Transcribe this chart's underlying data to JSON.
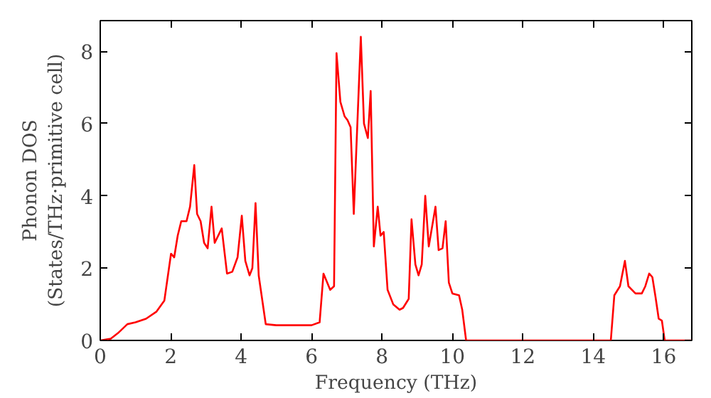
{
  "chart_data": {
    "type": "line",
    "xlabel": "Frequency (THz)",
    "ylabel": "Phonon DOS\n(States/THz·primitive cell)",
    "x": [
      0,
      0.3,
      0.5,
      0.77,
      1.0,
      1.3,
      1.6,
      1.82,
      2.01,
      2.1,
      2.2,
      2.3,
      2.45,
      2.55,
      2.67,
      2.75,
      2.85,
      2.95,
      3.05,
      3.16,
      3.25,
      3.45,
      3.6,
      3.75,
      3.9,
      4.02,
      4.12,
      4.24,
      4.32,
      4.41,
      4.5,
      4.7,
      5.0,
      5.5,
      6.0,
      6.23,
      6.34,
      6.53,
      6.64,
      6.71,
      6.82,
      6.94,
      7.02,
      7.11,
      7.2,
      7.4,
      7.49,
      7.6,
      7.68,
      7.77,
      7.88,
      7.96,
      8.05,
      8.16,
      8.32,
      8.5,
      8.6,
      8.76,
      8.84,
      8.95,
      9.04,
      9.13,
      9.23,
      9.33,
      9.52,
      9.61,
      9.72,
      9.81,
      9.9,
      10.0,
      10.19,
      10.28,
      10.39,
      12.0,
      14.5,
      14.6,
      14.76,
      14.9,
      15.0,
      15.2,
      15.38,
      15.48,
      15.59,
      15.68,
      15.77,
      15.86,
      15.95,
      16.03,
      16.8
    ],
    "series": [
      {
        "color": "#ff0000",
        "values": [
          0,
          0.05,
          0.2,
          0.45,
          0.5,
          0.6,
          0.8,
          1.1,
          2.4,
          2.3,
          2.9,
          3.3,
          3.3,
          3.7,
          4.85,
          3.5,
          3.3,
          2.7,
          2.55,
          3.7,
          2.7,
          3.1,
          1.85,
          1.9,
          2.3,
          3.45,
          2.2,
          1.8,
          2.0,
          3.8,
          1.8,
          0.45,
          0.42,
          0.42,
          0.42,
          0.5,
          1.85,
          1.4,
          1.5,
          7.95,
          6.6,
          6.2,
          6.1,
          5.9,
          3.5,
          8.4,
          6.0,
          5.6,
          6.9,
          2.6,
          3.7,
          2.9,
          3.0,
          1.4,
          1.0,
          0.85,
          0.9,
          1.15,
          3.35,
          2.1,
          1.8,
          2.1,
          4.0,
          2.6,
          3.7,
          2.5,
          2.55,
          3.3,
          1.6,
          1.3,
          1.25,
          0.85,
          0,
          0,
          0,
          1.25,
          1.5,
          2.2,
          1.5,
          1.3,
          1.3,
          1.5,
          1.85,
          1.75,
          1.2,
          0.6,
          0.55,
          0,
          0
        ]
      }
    ],
    "xlim": [
      0,
      16.8
    ],
    "ylim": [
      0,
      8.85
    ],
    "xticks": [
      0,
      2,
      4,
      6,
      8,
      10,
      12,
      14,
      16
    ],
    "yticks": [
      0,
      2,
      4,
      6,
      8
    ],
    "grid": false,
    "line_style": "solid",
    "marker": "none"
  }
}
